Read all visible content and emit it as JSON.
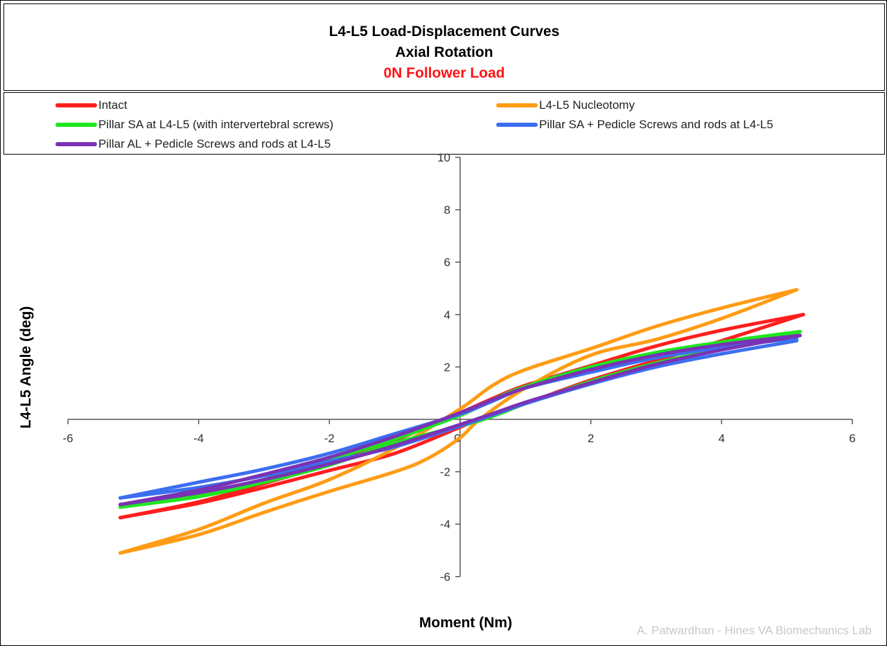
{
  "chart_data": {
    "type": "line",
    "title": "L4-L5 Load-Displacement Curves",
    "subtitle": "Axial Rotation",
    "subtitle2": "0N Follower Load",
    "xlabel": "Moment (Nm)",
    "ylabel": "L4-L5 Angle (deg)",
    "xlim": [
      -6,
      6
    ],
    "ylim": [
      -6,
      10
    ],
    "xticks": [
      -6,
      -4,
      -2,
      0,
      2,
      4,
      6
    ],
    "yticks": [
      -6,
      -4,
      -2,
      2,
      4,
      6,
      8,
      10
    ],
    "grid": false,
    "legend_position": "top",
    "credit": "A. Patwardhan - Hines VA Biomechanics Lab",
    "series": [
      {
        "name": "Intact",
        "color": "#ff1e1e",
        "loading": [
          [
            -5.2,
            -3.75
          ],
          [
            -4,
            -3.15
          ],
          [
            -3,
            -2.45
          ],
          [
            -2,
            -1.7
          ],
          [
            -1,
            -0.8
          ],
          [
            0,
            0.25
          ],
          [
            0.5,
            0.8
          ],
          [
            1,
            1.3
          ],
          [
            2,
            2.05
          ],
          [
            3,
            2.8
          ],
          [
            4,
            3.4
          ],
          [
            5.25,
            4.0
          ]
        ],
        "unloading": [
          [
            5.25,
            4.0
          ],
          [
            4,
            3.0
          ],
          [
            3,
            2.25
          ],
          [
            2,
            1.5
          ],
          [
            1,
            0.6
          ],
          [
            0.3,
            0.0
          ],
          [
            0,
            -0.3
          ],
          [
            -1,
            -1.3
          ],
          [
            -2,
            -1.95
          ],
          [
            -3,
            -2.6
          ],
          [
            -4,
            -3.2
          ],
          [
            -5.2,
            -3.75
          ]
        ]
      },
      {
        "name": "L4-L5 Nucleotomy",
        "color": "#ff9c14",
        "loading": [
          [
            -5.2,
            -5.1
          ],
          [
            -4,
            -4.2
          ],
          [
            -3,
            -3.2
          ],
          [
            -2,
            -2.3
          ],
          [
            -1,
            -1.1
          ],
          [
            0,
            0.4
          ],
          [
            0.5,
            1.3
          ],
          [
            1,
            1.9
          ],
          [
            2,
            2.7
          ],
          [
            3,
            3.55
          ],
          [
            4,
            4.25
          ],
          [
            5.15,
            4.95
          ]
        ],
        "unloading": [
          [
            5.15,
            4.95
          ],
          [
            4,
            3.85
          ],
          [
            3,
            3.05
          ],
          [
            2,
            2.45
          ],
          [
            1,
            1.2
          ],
          [
            0.3,
            0.0
          ],
          [
            0,
            -0.7
          ],
          [
            -0.5,
            -1.5
          ],
          [
            -1,
            -2.0
          ],
          [
            -2,
            -2.75
          ],
          [
            -3,
            -3.55
          ],
          [
            -4,
            -4.4
          ],
          [
            -5.2,
            -5.1
          ]
        ]
      },
      {
        "name": "Pillar SA at L4-L5 (with intervertebral screws)",
        "color": "#1ee61e",
        "loading": [
          [
            -5.2,
            -3.35
          ],
          [
            -4,
            -2.85
          ],
          [
            -3,
            -2.3
          ],
          [
            -2,
            -1.55
          ],
          [
            -1,
            -0.75
          ],
          [
            0,
            0.15
          ],
          [
            0.5,
            0.75
          ],
          [
            1,
            1.25
          ],
          [
            2,
            2.0
          ],
          [
            3,
            2.55
          ],
          [
            4,
            2.95
          ],
          [
            5.2,
            3.35
          ]
        ],
        "unloading": [
          [
            5.2,
            3.35
          ],
          [
            4,
            2.7
          ],
          [
            3,
            2.15
          ],
          [
            2,
            1.45
          ],
          [
            1,
            0.6
          ],
          [
            0.3,
            -0.05
          ],
          [
            -1,
            -0.9
          ],
          [
            -2,
            -1.75
          ],
          [
            -3,
            -2.4
          ],
          [
            -4,
            -2.95
          ],
          [
            -5.2,
            -3.35
          ]
        ]
      },
      {
        "name": "Pillar SA + Pedicle Screws and rods at L4-L5",
        "color": "#3c6ef0",
        "loading": [
          [
            -5.2,
            -3.0
          ],
          [
            -4,
            -2.4
          ],
          [
            -3,
            -1.9
          ],
          [
            -2,
            -1.3
          ],
          [
            -1,
            -0.55
          ],
          [
            0,
            0.2
          ],
          [
            0.5,
            0.7
          ],
          [
            1,
            1.2
          ],
          [
            2,
            1.8
          ],
          [
            3,
            2.35
          ],
          [
            4,
            2.75
          ],
          [
            5.15,
            3.1
          ]
        ],
        "unloading": [
          [
            5.15,
            3.0
          ],
          [
            4,
            2.5
          ],
          [
            3,
            2.0
          ],
          [
            2,
            1.35
          ],
          [
            1,
            0.6
          ],
          [
            0.3,
            0.0
          ],
          [
            -1,
            -1.05
          ],
          [
            -2,
            -1.6
          ],
          [
            -3,
            -2.15
          ],
          [
            -4,
            -2.6
          ],
          [
            -5.2,
            -3.0
          ]
        ]
      },
      {
        "name": "Pillar AL + Pedicle Screws and rods at L4-L5",
        "color": "#7a32b4",
        "loading": [
          [
            -5.2,
            -3.25
          ],
          [
            -4,
            -2.7
          ],
          [
            -3,
            -2.1
          ],
          [
            -2,
            -1.45
          ],
          [
            -1,
            -0.65
          ],
          [
            0,
            0.25
          ],
          [
            0.5,
            0.75
          ],
          [
            1,
            1.2
          ],
          [
            2,
            1.9
          ],
          [
            3,
            2.45
          ],
          [
            4,
            2.85
          ],
          [
            5.2,
            3.2
          ]
        ],
        "unloading": [
          [
            5.2,
            3.2
          ],
          [
            4,
            2.65
          ],
          [
            3,
            2.1
          ],
          [
            2,
            1.4
          ],
          [
            1,
            0.65
          ],
          [
            0.3,
            0.05
          ],
          [
            -1,
            -1.0
          ],
          [
            -2,
            -1.7
          ],
          [
            -3,
            -2.3
          ],
          [
            -4,
            -2.8
          ],
          [
            -5.2,
            -3.25
          ]
        ]
      }
    ]
  }
}
